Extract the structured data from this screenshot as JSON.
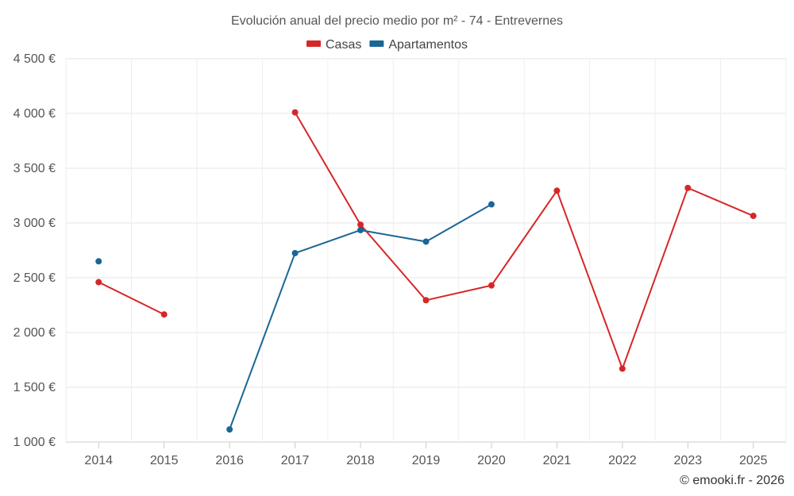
{
  "chart_data": {
    "type": "line",
    "title": "Evolución anual del precio medio por m² - 74 - Entrevernes",
    "categories": [
      "2014",
      "2015",
      "2016",
      "2017",
      "2018",
      "2019",
      "2020",
      "2021",
      "2022",
      "2023",
      "2025"
    ],
    "ylim": [
      1000,
      4500
    ],
    "yticks": [
      1000,
      1500,
      2000,
      2500,
      3000,
      3500,
      4000,
      4500
    ],
    "ytick_labels": [
      "1 000 €",
      "1 500 €",
      "2 000 €",
      "2 500 €",
      "3 000 €",
      "3 500 €",
      "4 000 €",
      "4 500 €"
    ],
    "grid": true,
    "legend_position": "top-center",
    "series": [
      {
        "name": "Casas",
        "color": "#d62728",
        "values": [
          2460,
          2165,
          null,
          4010,
          2985,
          2295,
          2430,
          3295,
          1670,
          3320,
          3065
        ]
      },
      {
        "name": "Apartamentos",
        "color": "#1a6696",
        "values": [
          2650,
          null,
          1115,
          2725,
          2935,
          2830,
          3170,
          null,
          null,
          null,
          null
        ]
      }
    ]
  },
  "credit": "© emooki.fr - 2026"
}
